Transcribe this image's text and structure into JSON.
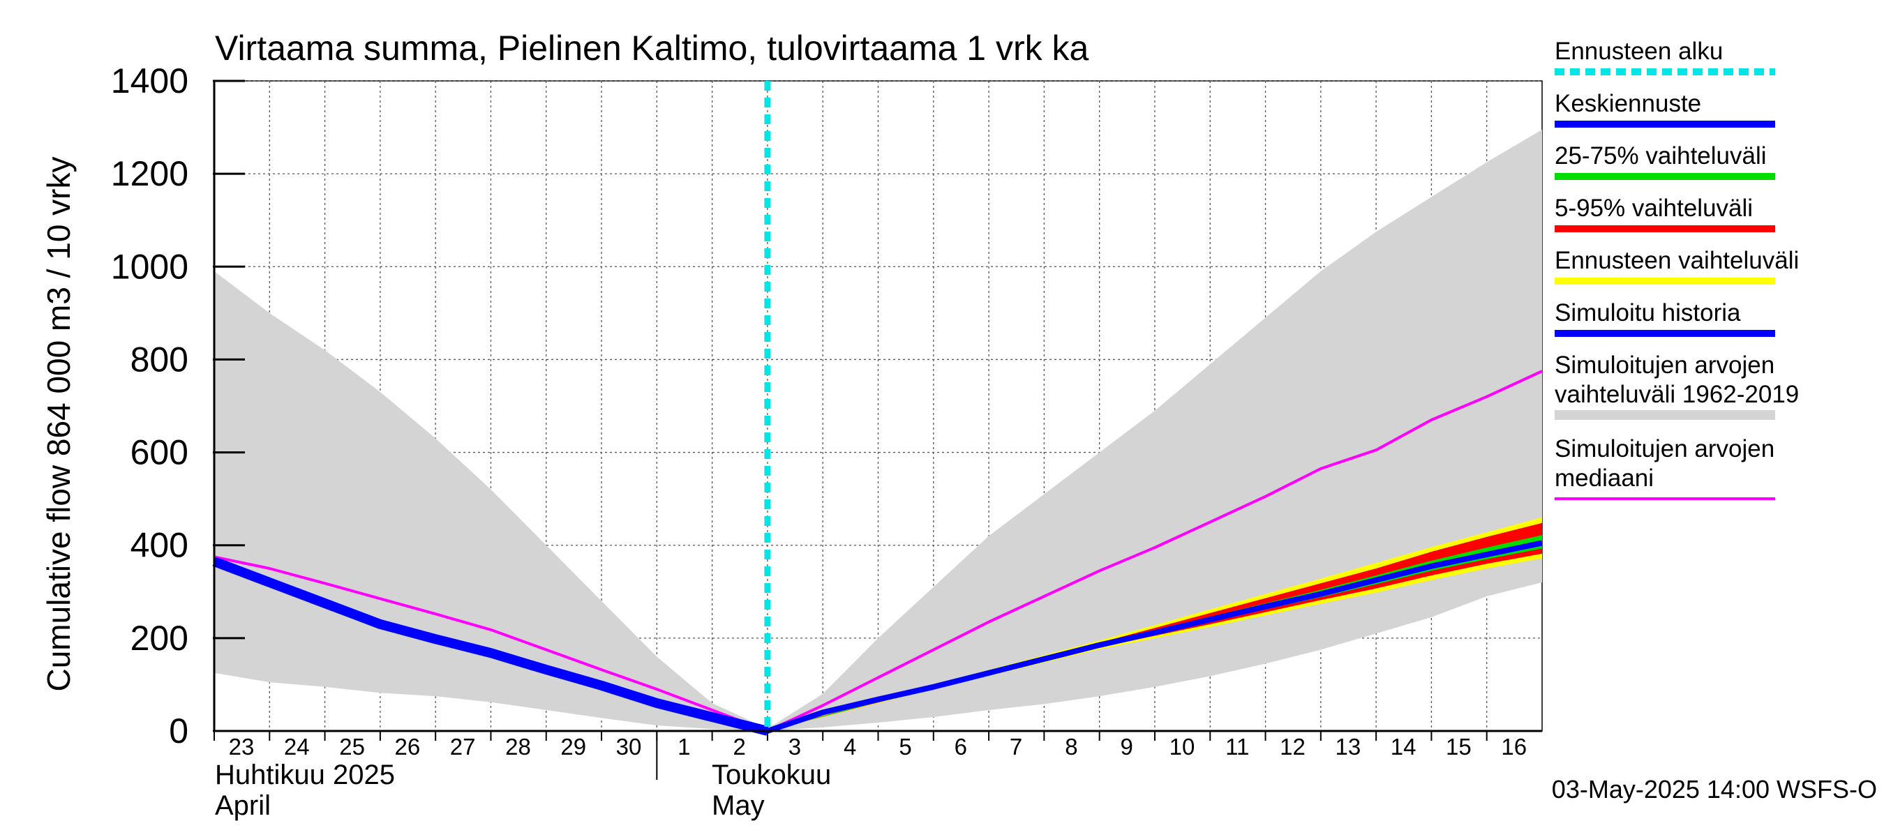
{
  "chart_data": {
    "type": "area",
    "title": "Virtaama summa, Pielinen Kaltimo, tulovirtaama 1 vrk ka",
    "ylabel": "Cumulative flow     864 000 m3 / 10 vrky",
    "ylim": [
      0,
      1400
    ],
    "yticks": [
      0,
      200,
      400,
      600,
      800,
      1000,
      1200,
      1400
    ],
    "xlim": [
      0,
      24
    ],
    "day_labels": [
      "23",
      "24",
      "25",
      "26",
      "27",
      "28",
      "29",
      "30",
      "1",
      "2",
      "3",
      "4",
      "5",
      "6",
      "7",
      "8",
      "9",
      "10",
      "11",
      "12",
      "13",
      "14",
      "15",
      "16"
    ],
    "month_labels": {
      "april_fi": "Huhtikuu  2025",
      "april_en": "April",
      "may_fi": "Toukokuu",
      "may_en": "May"
    },
    "forecast_start_x": 10,
    "timestamp": "03-May-2025 14:00 WSFS-O",
    "colors": {
      "forecast_start": "#00e5e5",
      "mean_forecast": "#0000ff",
      "range_25_75": "#00dd00",
      "range_5_95": "#ff0000",
      "forecast_range": "#ffff00",
      "simulated_history": "#0000ff",
      "historical_range": "#d4d4d4",
      "historical_median": "#ff00ff"
    },
    "legend": [
      {
        "key": "forecast_start",
        "label": "Ennusteen alku",
        "style": "dashed"
      },
      {
        "key": "mean_forecast",
        "label": "Keskiennuste",
        "style": "line"
      },
      {
        "key": "range_25_75",
        "label": "25-75% vaihteluväli",
        "style": "line"
      },
      {
        "key": "range_5_95",
        "label": "5-95% vaihteluväli",
        "style": "line"
      },
      {
        "key": "forecast_range",
        "label": "Ennusteen vaihteluväli",
        "style": "line"
      },
      {
        "key": "simulated_history",
        "label": "Simuloitu historia",
        "style": "line"
      },
      {
        "key": "historical_range",
        "label": "Simuloitujen arvojen\nvaihteluväli 1962-2019",
        "style": "thick"
      },
      {
        "key": "historical_median",
        "label": "Simuloitujen arvojen\nmediaani",
        "style": "thin"
      }
    ],
    "series": {
      "historical_range_upper": {
        "x": [
          0,
          1,
          2,
          3,
          4,
          5,
          6,
          7,
          8,
          9,
          10,
          11,
          12,
          13,
          14,
          15,
          16,
          17,
          18,
          19,
          20,
          21,
          22,
          23,
          24
        ],
        "y": [
          990,
          900,
          820,
          730,
          630,
          520,
          400,
          280,
          160,
          60,
          5,
          80,
          200,
          310,
          420,
          510,
          600,
          690,
          790,
          890,
          990,
          1075,
          1150,
          1225,
          1295
        ]
      },
      "historical_range_lower": {
        "x": [
          0,
          1,
          2,
          3,
          4,
          5,
          6,
          7,
          8,
          9,
          10,
          11,
          12,
          13,
          14,
          15,
          16,
          17,
          18,
          19,
          20,
          21,
          22,
          23,
          24
        ],
        "y": [
          125,
          105,
          95,
          82,
          75,
          62,
          45,
          28,
          12,
          4,
          0,
          8,
          18,
          30,
          45,
          58,
          75,
          95,
          118,
          145,
          175,
          210,
          245,
          290,
          320
        ]
      },
      "historical_median": {
        "x": [
          0,
          1,
          2,
          3,
          4,
          5,
          6,
          7,
          8,
          9,
          10,
          11,
          12,
          13,
          14,
          15,
          16,
          17,
          18,
          19,
          20,
          21,
          22,
          23,
          24
        ],
        "y": [
          375,
          350,
          318,
          285,
          252,
          218,
          175,
          132,
          90,
          45,
          0,
          55,
          115,
          175,
          235,
          290,
          345,
          395,
          450,
          505,
          565,
          605,
          670,
          720,
          775
        ]
      },
      "simulated_history": {
        "x": [
          0,
          1,
          2,
          3,
          4,
          5,
          6,
          7,
          8,
          9,
          10
        ],
        "y": [
          365,
          320,
          275,
          230,
          198,
          168,
          132,
          98,
          60,
          30,
          0
        ]
      },
      "mean_forecast": {
        "x": [
          10,
          11,
          12,
          13,
          14,
          15,
          16,
          17,
          18,
          19,
          20,
          21,
          22,
          23,
          24
        ],
        "y": [
          0,
          40,
          68,
          95,
          125,
          155,
          185,
          212,
          240,
          268,
          295,
          325,
          355,
          380,
          405
        ]
      },
      "range_25_75_upper": {
        "x": [
          10,
          13,
          16,
          17,
          18,
          19,
          20,
          21,
          22,
          23,
          24
        ],
        "y": [
          0,
          97,
          187,
          216,
          246,
          275,
          304,
          335,
          367,
          395,
          422
        ]
      },
      "range_25_75_lower": {
        "x": [
          10,
          13,
          16,
          17,
          18,
          19,
          20,
          21,
          22,
          23,
          24
        ],
        "y": [
          0,
          93,
          183,
          209,
          235,
          262,
          288,
          316,
          345,
          370,
          393
        ]
      },
      "range_5_95_upper": {
        "x": [
          10,
          13,
          16,
          17,
          18,
          19,
          20,
          21,
          22,
          23,
          24
        ],
        "y": [
          0,
          98,
          190,
          222,
          254,
          286,
          318,
          350,
          386,
          418,
          448
        ]
      },
      "range_5_95_lower": {
        "x": [
          10,
          13,
          16,
          17,
          18,
          19,
          20,
          21,
          22,
          23,
          24
        ],
        "y": [
          0,
          92,
          180,
          205,
          230,
          256,
          282,
          307,
          335,
          360,
          382
        ]
      },
      "forecast_range_upper": {
        "x": [
          10,
          13,
          16,
          17,
          18,
          19,
          20,
          21,
          22,
          23,
          24
        ],
        "y": [
          0,
          100,
          195,
          228,
          262,
          295,
          328,
          362,
          396,
          428,
          460
        ]
      },
      "forecast_range_lower": {
        "x": [
          10,
          13,
          16,
          17,
          18,
          19,
          20,
          21,
          22,
          23,
          24
        ],
        "y": [
          0,
          90,
          176,
          200,
          224,
          249,
          274,
          298,
          325,
          350,
          372
        ]
      }
    }
  }
}
